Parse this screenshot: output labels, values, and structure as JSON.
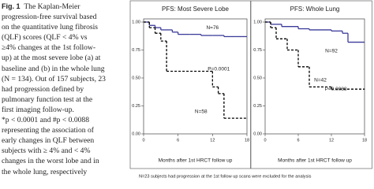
{
  "caption": {
    "label": "Fig. 1",
    "lines": [
      "The Kaplan-Meier",
      "progression-free survival based",
      "on the quantitative lung fibrosis",
      "(QLF) scores (QLF < 4% vs",
      "≥4% changes at the 1st follow-",
      "up) at the most severe lobe (a) at",
      "baseline and (b) in the whole lung",
      "(N = 134). Out of 157 subjects, 23",
      "had progression defined by",
      "pulmonary function test at the",
      "first imaging follow-up.",
      "*p < 0.0001 and #p < 0.0088",
      "representing the association of",
      "early changes in QLF between",
      "subjects with ≥ 4% and < 4%",
      "changes in the worst lobe and in",
      "the whole lung, respectively"
    ]
  },
  "footnote": "N=23 subjects had progression at the 1st follow up scans were excluded for the analysis",
  "chart_data": [
    {
      "type": "step",
      "title": "PFS: Most Severe Lobe",
      "x_label": "Months after 1st HRCT follow up",
      "xlim": [
        0,
        18
      ],
      "xticks": [
        0,
        6,
        12,
        18
      ],
      "ylim": [
        0,
        1
      ],
      "yticks": [
        {
          "value": 0,
          "label": "0.00"
        },
        {
          "value": 0.25,
          "label": "0.25"
        },
        {
          "value": 0.5,
          "label": "0.50"
        },
        {
          "value": 0.75,
          "label": "0.75"
        },
        {
          "value": 1,
          "label": "1.00"
        }
      ],
      "annotations": [
        "P=0.0001"
      ],
      "series": [
        {
          "name": "N=76",
          "color": "#3b3b9a",
          "dash": false,
          "x": [
            0,
            1,
            2,
            3,
            5,
            6,
            8,
            10,
            12,
            14,
            16,
            18
          ],
          "values": [
            1,
            0.97,
            0.95,
            0.93,
            0.91,
            0.89,
            0.89,
            0.88,
            0.88,
            0.87,
            0.87,
            0.87
          ]
        },
        {
          "name": "N=58",
          "color": "#000000",
          "dash": true,
          "x": [
            0,
            1,
            2,
            3,
            4,
            12,
            13,
            14,
            18
          ],
          "values": [
            1,
            0.95,
            0.9,
            0.83,
            0.56,
            0.42,
            0.36,
            0.14,
            0.14
          ]
        }
      ]
    },
    {
      "type": "step",
      "title": "PFS: Whole Lung",
      "x_label": "Months after 1st HRCT follow up",
      "xlim": [
        0,
        18
      ],
      "xticks": [
        0,
        6,
        12,
        18
      ],
      "ylim": [
        0,
        1
      ],
      "yticks": [
        {
          "value": 0,
          "label": "0.00"
        },
        {
          "value": 0.25,
          "label": "0.25"
        },
        {
          "value": 0.5,
          "label": "0.50"
        },
        {
          "value": 0.75,
          "label": "0.75"
        },
        {
          "value": 1,
          "label": "1.00"
        }
      ],
      "annotations": [
        "P=0.0088"
      ],
      "series": [
        {
          "name": "N=92",
          "color": "#3b3b9a",
          "dash": false,
          "x": [
            0,
            1,
            3,
            6,
            8,
            12,
            14,
            15,
            18
          ],
          "values": [
            1,
            0.98,
            0.96,
            0.94,
            0.93,
            0.92,
            0.9,
            0.82,
            0.82
          ]
        },
        {
          "name": "N=42",
          "color": "#000000",
          "dash": true,
          "x": [
            0,
            1,
            2,
            4,
            6,
            8,
            12,
            18
          ],
          "values": [
            1,
            0.95,
            0.85,
            0.75,
            0.6,
            0.42,
            0.4,
            0.4
          ]
        }
      ]
    }
  ]
}
